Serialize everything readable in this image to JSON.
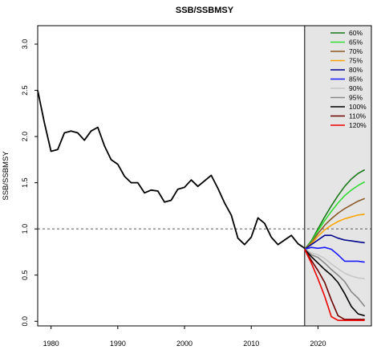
{
  "chart_data": {
    "type": "line",
    "title": "SSB/SSBMSY",
    "xlabel": "",
    "ylabel": "SSB/SSBMSY",
    "xlim": [
      1978,
      2028
    ],
    "ylim": [
      -0.05,
      3.2
    ],
    "x_ticks": [
      1980,
      1990,
      2000,
      2010,
      2020
    ],
    "y_ticks": [
      0.0,
      0.5,
      1.0,
      1.5,
      2.0,
      2.5,
      3.0
    ],
    "y_tick_labels": [
      "0.0",
      "0.5",
      "1.0",
      "1.5",
      "2.0",
      "2.5",
      "3.0"
    ],
    "reference_line": {
      "y": 1.0,
      "style": "dashed"
    },
    "projection_region": {
      "x_start": 2018,
      "x_end": 2028,
      "color": "#e5e5e5"
    },
    "historical": {
      "color": "#000000",
      "x": [
        1978,
        1979,
        1980,
        1981,
        1982,
        1983,
        1984,
        1985,
        1986,
        1987,
        1988,
        1989,
        1990,
        1991,
        1992,
        1993,
        1994,
        1995,
        1996,
        1997,
        1998,
        1999,
        2000,
        2001,
        2002,
        2003,
        2004,
        2005,
        2006,
        2007,
        2008,
        2009,
        2010,
        2011,
        2012,
        2013,
        2014,
        2015,
        2016,
        2017,
        2018
      ],
      "y": [
        2.5,
        2.15,
        1.84,
        1.86,
        2.04,
        2.06,
        2.04,
        1.96,
        2.06,
        2.1,
        1.9,
        1.75,
        1.7,
        1.57,
        1.5,
        1.5,
        1.39,
        1.42,
        1.41,
        1.29,
        1.31,
        1.43,
        1.45,
        1.53,
        1.46,
        1.52,
        1.58,
        1.44,
        1.28,
        1.15,
        0.9,
        0.83,
        0.91,
        1.12,
        1.06,
        0.91,
        0.83,
        0.88,
        0.93,
        0.84,
        0.79
      ]
    },
    "projection_x": [
      2018,
      2019,
      2020,
      2021,
      2022,
      2023,
      2024,
      2025,
      2026,
      2027
    ],
    "series": [
      {
        "name": "60%",
        "color": "#1a7a1a",
        "values": [
          0.78,
          0.87,
          1.0,
          1.13,
          1.25,
          1.36,
          1.46,
          1.54,
          1.6,
          1.64
        ]
      },
      {
        "name": "65%",
        "color": "#33dd33",
        "values": [
          0.78,
          0.86,
          0.98,
          1.09,
          1.19,
          1.28,
          1.36,
          1.42,
          1.47,
          1.51
        ]
      },
      {
        "name": "70%",
        "color": "#8b5a2b",
        "values": [
          0.78,
          0.85,
          0.95,
          1.04,
          1.11,
          1.17,
          1.22,
          1.26,
          1.3,
          1.33
        ]
      },
      {
        "name": "75%",
        "color": "#ffa500",
        "values": [
          0.78,
          0.84,
          0.92,
          0.99,
          1.04,
          1.08,
          1.11,
          1.13,
          1.15,
          1.16
        ]
      },
      {
        "name": "80%",
        "color": "#00008b",
        "values": [
          0.78,
          0.83,
          0.88,
          0.93,
          0.93,
          0.9,
          0.88,
          0.87,
          0.86,
          0.85
        ]
      },
      {
        "name": "85%",
        "color": "#1a1aff",
        "values": [
          0.78,
          0.8,
          0.79,
          0.8,
          0.78,
          0.72,
          0.65,
          0.65,
          0.65,
          0.64
        ]
      },
      {
        "name": "90%",
        "color": "#c8c8c8",
        "values": [
          0.78,
          0.74,
          0.72,
          0.68,
          0.62,
          0.57,
          0.52,
          0.49,
          0.47,
          0.46
        ]
      },
      {
        "name": "95%",
        "color": "#888888",
        "values": [
          0.78,
          0.72,
          0.69,
          0.63,
          0.56,
          0.5,
          0.43,
          0.32,
          0.25,
          0.16
        ]
      },
      {
        "name": "100%",
        "color": "#000000",
        "values": [
          0.78,
          0.7,
          0.63,
          0.56,
          0.5,
          0.42,
          0.3,
          0.16,
          0.08,
          0.06
        ]
      },
      {
        "name": "110%",
        "color": "#6b0000",
        "values": [
          0.78,
          0.66,
          0.55,
          0.42,
          0.23,
          0.06,
          0.02,
          0.02,
          0.02,
          0.02
        ]
      },
      {
        "name": "120%",
        "color": "#ee0000",
        "values": [
          0.78,
          0.63,
          0.46,
          0.27,
          0.05,
          0.01,
          0.01,
          0.01,
          0.01,
          0.01
        ]
      }
    ],
    "legend_placement": "top-right",
    "grid": false
  }
}
